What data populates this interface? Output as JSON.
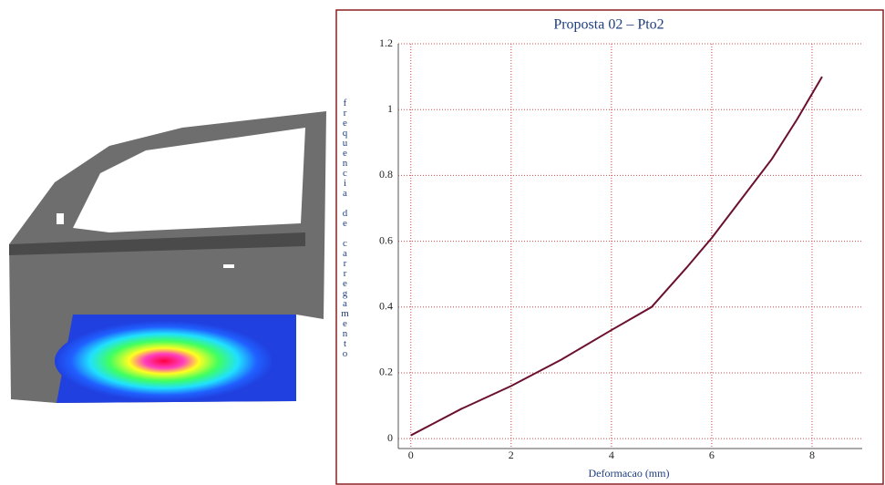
{
  "chart_data": {
    "type": "line",
    "title": "Proposta 02 – Pto2",
    "x_label": "Deformacao (mm)",
    "y_label": "frequencia de carregamento",
    "x": [
      0,
      0.5,
      1,
      2,
      3,
      4,
      4.8,
      5.5,
      6,
      6.5,
      7.2,
      7.7,
      8.2
    ],
    "series": [
      {
        "name": "Pto2",
        "color": "#6b1030",
        "values": [
          0.01,
          0.05,
          0.09,
          0.16,
          0.24,
          0.33,
          0.4,
          0.52,
          0.61,
          0.71,
          0.85,
          0.97,
          1.1
        ]
      }
    ],
    "xlim": [
      -0.25,
      9
    ],
    "ylim": [
      -0.03,
      1.2
    ],
    "xticks": [
      0,
      2,
      4,
      6,
      8
    ],
    "yticks": [
      0,
      0.2,
      0.4,
      0.6,
      0.8,
      1,
      1.2
    ],
    "grid": true,
    "grid_color": "#d04848"
  }
}
